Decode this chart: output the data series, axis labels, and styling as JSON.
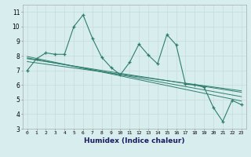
{
  "xlabel": "Humidex (Indice chaleur)",
  "xlim": [
    -0.5,
    23.5
  ],
  "ylim": [
    3,
    11.5
  ],
  "yticks": [
    3,
    4,
    5,
    6,
    7,
    8,
    9,
    10,
    11
  ],
  "xticks": [
    0,
    1,
    2,
    3,
    4,
    5,
    6,
    7,
    8,
    9,
    10,
    11,
    12,
    13,
    14,
    15,
    16,
    17,
    18,
    19,
    20,
    21,
    22,
    23
  ],
  "main_x": [
    0,
    1,
    2,
    3,
    4,
    5,
    6,
    7,
    8,
    9,
    10,
    11,
    12,
    13,
    14,
    15,
    16,
    17,
    18,
    19,
    20,
    21,
    22,
    23
  ],
  "main_y": [
    7.0,
    7.8,
    8.2,
    8.1,
    8.1,
    10.0,
    10.8,
    9.2,
    7.9,
    7.2,
    6.7,
    7.55,
    8.8,
    8.05,
    7.45,
    9.45,
    8.75,
    6.05,
    6.0,
    5.85,
    4.45,
    3.5,
    4.95,
    4.65
  ],
  "trend1_x": [
    0,
    23
  ],
  "trend1_y": [
    7.6,
    5.6
  ],
  "trend2_x": [
    0,
    23
  ],
  "trend2_y": [
    7.8,
    5.5
  ],
  "trend3_x": [
    0,
    23
  ],
  "trend3_y": [
    7.85,
    5.2
  ],
  "trend4_x": [
    0,
    23
  ],
  "trend4_y": [
    7.95,
    4.9
  ],
  "line_color": "#2e7d6e",
  "bg_color": "#d8eeee",
  "grid_color": "#c8dada"
}
